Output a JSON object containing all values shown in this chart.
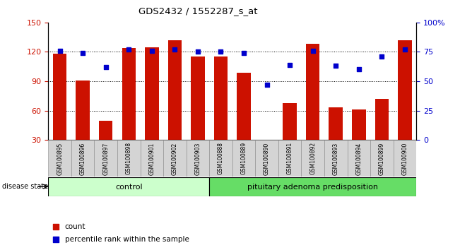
{
  "title": "GDS2432 / 1552287_s_at",
  "samples": [
    "GSM100895",
    "GSM100896",
    "GSM100897",
    "GSM100898",
    "GSM100901",
    "GSM100902",
    "GSM100903",
    "GSM100888",
    "GSM100889",
    "GSM100890",
    "GSM100891",
    "GSM100892",
    "GSM100893",
    "GSM100894",
    "GSM100899",
    "GSM100900"
  ],
  "counts": [
    118,
    91,
    50,
    124,
    125,
    132,
    115,
    115,
    99,
    28,
    68,
    128,
    63,
    61,
    72,
    132
  ],
  "percentiles": [
    76,
    74,
    62,
    77,
    76,
    77,
    75,
    75,
    74,
    47,
    64,
    76,
    63,
    60,
    71,
    77
  ],
  "control_count": 7,
  "disease_count": 9,
  "control_label": "control",
  "disease_label": "pituitary adenoma predisposition",
  "ylim_left": [
    30,
    150
  ],
  "ylim_right": [
    0,
    100
  ],
  "yticks_left": [
    30,
    60,
    90,
    120,
    150
  ],
  "yticks_right": [
    0,
    25,
    50,
    75,
    100
  ],
  "bar_color": "#cc1100",
  "dot_color": "#0000cc",
  "control_bg": "#ccffcc",
  "disease_bg": "#66dd66",
  "axis_label_left_color": "#cc1100",
  "axis_label_right_color": "#0000cc",
  "legend_count_label": "count",
  "legend_pct_label": "percentile rank within the sample",
  "hgrid_color": "#000000"
}
